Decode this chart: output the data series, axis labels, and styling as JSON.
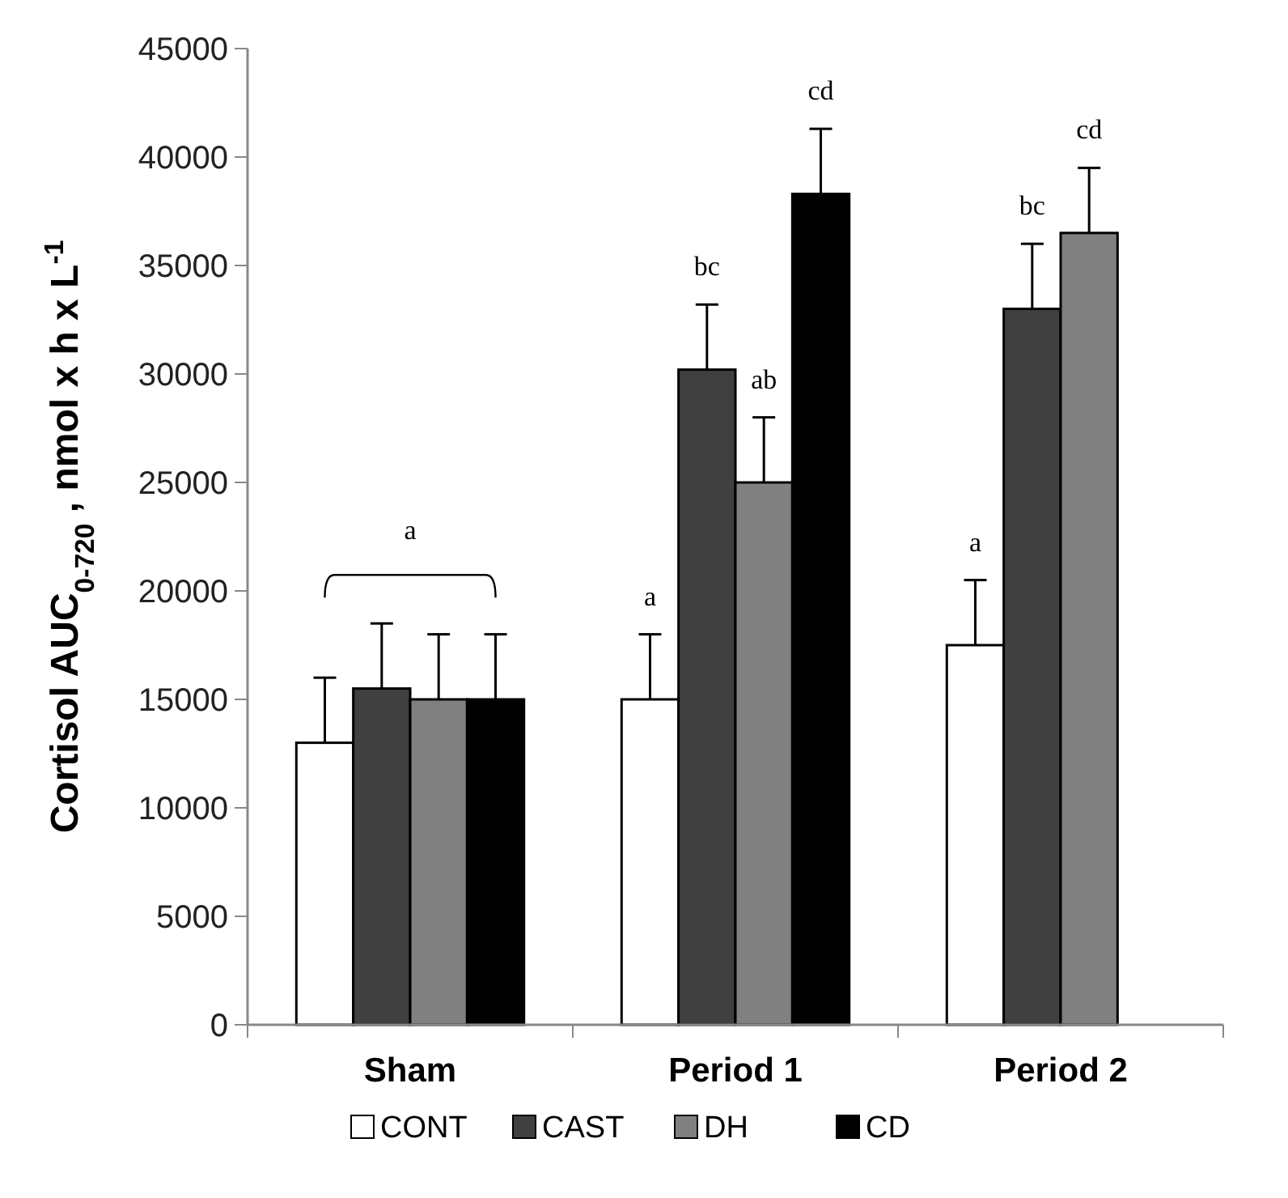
{
  "chart_data": {
    "type": "bar",
    "ylabel": "Cortisol AUC$_{0-720}$  , nmol x h x L$^{-1}$",
    "categories": [
      "Sham",
      "Period 1",
      "Period 2"
    ],
    "series": [
      {
        "name": "CONT",
        "color": "#ffffff",
        "values": [
          13000,
          15000,
          17500
        ],
        "errors": [
          3000,
          3000,
          3000
        ]
      },
      {
        "name": "CAST",
        "color": "#404040",
        "values": [
          15500,
          30200,
          33000
        ],
        "errors": [
          3000,
          3000,
          3000
        ]
      },
      {
        "name": "DH",
        "color": "#808080",
        "values": [
          15000,
          25000,
          36500
        ],
        "errors": [
          3000,
          3000,
          3000
        ]
      },
      {
        "name": "CD",
        "color": "#000000",
        "values": [
          15000,
          38300,
          null
        ],
        "errors": [
          3000,
          3000,
          null
        ]
      }
    ],
    "ylim": [
      0,
      45000
    ],
    "yticks": [
      0,
      5000,
      10000,
      15000,
      20000,
      25000,
      30000,
      35000,
      40000,
      45000
    ],
    "grid": false,
    "legend": "bottom",
    "annotations": [
      "a",
      "a",
      "bc",
      "ab",
      "cd",
      "a",
      "bc",
      "cd"
    ]
  }
}
